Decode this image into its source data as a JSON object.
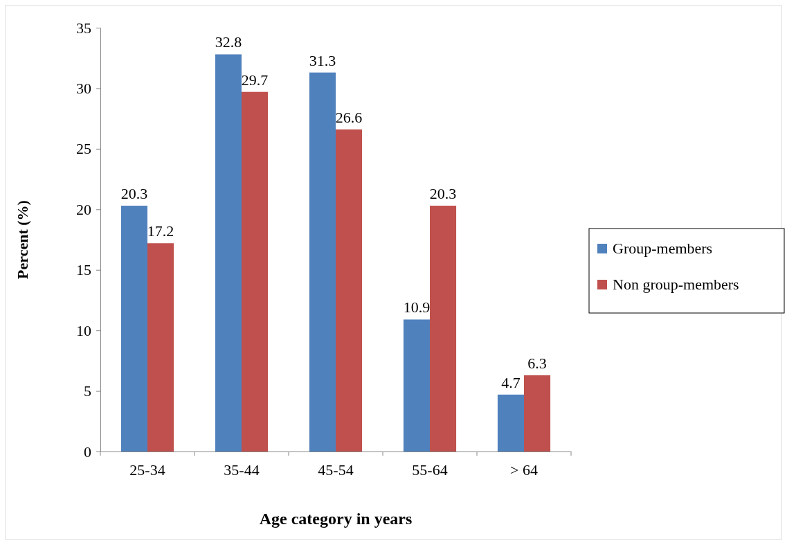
{
  "chart_data": {
    "type": "bar",
    "xlabel": "Age category in years",
    "ylabel": "Percent (%)",
    "categories": [
      "25-34",
      "35-44",
      "45-54",
      "55-64",
      "> 64"
    ],
    "series": [
      {
        "name": "Group-members",
        "color": "#4f81bd",
        "values": [
          20.3,
          32.8,
          31.3,
          10.9,
          4.7
        ]
      },
      {
        "name": "Non group-members",
        "color": "#c0504d",
        "values": [
          17.2,
          29.7,
          26.6,
          20.3,
          6.3
        ]
      }
    ],
    "ylim": [
      0,
      35
    ],
    "yticks": [
      0,
      5,
      10,
      15,
      20,
      25,
      30,
      35
    ],
    "data_labels": true,
    "legend": "right"
  }
}
